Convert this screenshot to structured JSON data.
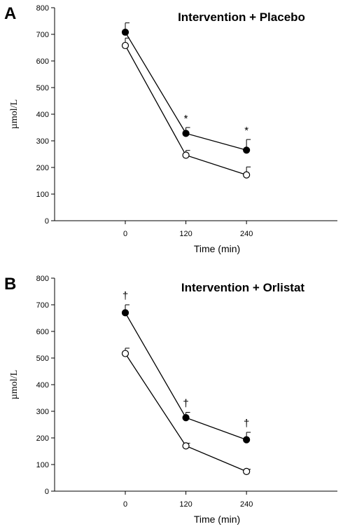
{
  "chart_data": [
    {
      "panel": "A",
      "type": "line",
      "title": "Intervention + Placebo",
      "xlabel": "Time (min)",
      "ylabel": "µmol/L",
      "x": [
        0,
        120,
        240
      ],
      "xticks": [
        "0",
        "120",
        "240"
      ],
      "ylim": [
        0,
        800
      ],
      "yticks": [
        "0",
        "100",
        "200",
        "300",
        "400",
        "500",
        "600",
        "700",
        "800"
      ],
      "grid": false,
      "series": [
        {
          "marker": "filled-circle",
          "values": [
            708,
            328,
            265
          ],
          "errors": [
            35,
            22,
            40
          ],
          "annotations": [
            "",
            "*",
            "*"
          ]
        },
        {
          "marker": "open-circle",
          "values": [
            658,
            246,
            172
          ],
          "errors": [
            28,
            18,
            30
          ],
          "annotations": [
            "",
            "",
            ""
          ]
        }
      ]
    },
    {
      "panel": "B",
      "type": "line",
      "title": "Intervention + Orlistat",
      "xlabel": "Time (min)",
      "ylabel": "µmol/L",
      "x": [
        0,
        120,
        240
      ],
      "xticks": [
        "0",
        "120",
        "240"
      ],
      "ylim": [
        0,
        800
      ],
      "yticks": [
        "0",
        "100",
        "200",
        "300",
        "400",
        "500",
        "600",
        "700",
        "800"
      ],
      "grid": false,
      "series": [
        {
          "marker": "filled-circle",
          "values": [
            670,
            276,
            193
          ],
          "errors": [
            30,
            20,
            28
          ],
          "annotations": [
            "†",
            "†",
            "†"
          ]
        },
        {
          "marker": "open-circle",
          "values": [
            517,
            170,
            74
          ],
          "errors": [
            20,
            10,
            8
          ],
          "annotations": [
            "",
            "",
            ""
          ]
        }
      ]
    }
  ]
}
